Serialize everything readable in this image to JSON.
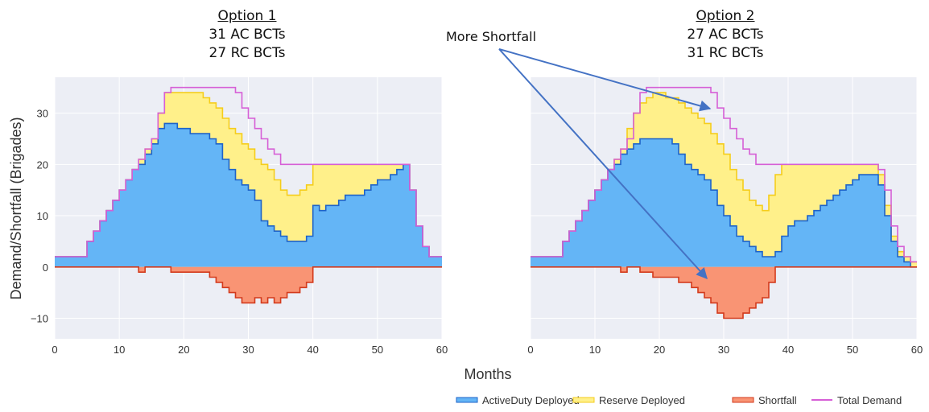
{
  "titles": {
    "left": {
      "line1": "Option 1",
      "line2": "31 AC BCTs",
      "line3": "27 RC BCTs"
    },
    "right": {
      "line1": "Option 2",
      "line2": "27 AC BCTs",
      "line3": "31 RC BCTs"
    }
  },
  "annotation": "More Shortfall",
  "colors": {
    "active": "#64b5f6",
    "active_line": "#1e63c8",
    "reserve": "#fff08a",
    "reserve_line": "#f5cd1c",
    "shortfall": "#f99474",
    "shortfall_line": "#d33a1c",
    "demand": "#d65fd6",
    "plot_bg": "#eceef5",
    "grid": "#ffffff",
    "arrow": "#4472c4"
  },
  "chart_data": [
    {
      "type": "area",
      "name": "Option 1",
      "xlabel": "Months",
      "ylabel": "Demand/Shortfall (Brigades)",
      "xlim": [
        0,
        60
      ],
      "ylim": [
        -14,
        37
      ],
      "xticks": [
        0,
        10,
        20,
        30,
        40,
        50,
        60
      ],
      "yticks": [
        -10,
        0,
        10,
        20,
        30
      ],
      "grid": true,
      "legend": "bottom-right",
      "series": [
        {
          "name": "ActiveDuty Deployed",
          "x": [
            0,
            4,
            5,
            6,
            7,
            8,
            9,
            10,
            11,
            12,
            13,
            14,
            15,
            16,
            17,
            18,
            19,
            20,
            21,
            22,
            23,
            24,
            25,
            26,
            27,
            28,
            29,
            30,
            31,
            32,
            33,
            34,
            35,
            36,
            37,
            38,
            39,
            40,
            41,
            42,
            43,
            44,
            45,
            46,
            47,
            48,
            49,
            50,
            51,
            52,
            53,
            54,
            55,
            56,
            57,
            58,
            59,
            60
          ],
          "values": [
            2,
            2,
            5,
            7,
            9,
            11,
            13,
            15,
            17,
            19,
            20,
            22,
            24,
            27,
            28,
            28,
            27,
            27,
            26,
            26,
            26,
            25,
            24,
            21,
            19,
            17,
            16,
            15,
            13,
            9,
            8,
            7,
            6,
            5,
            5,
            5,
            6,
            12,
            11,
            12,
            12,
            13,
            14,
            14,
            14,
            15,
            16,
            17,
            17,
            18,
            19,
            20,
            15,
            8,
            4,
            2,
            2,
            2
          ]
        },
        {
          "name": "Reserve Deployed",
          "x": [
            0,
            4,
            5,
            6,
            7,
            8,
            9,
            10,
            11,
            12,
            13,
            14,
            15,
            16,
            17,
            18,
            19,
            20,
            21,
            22,
            23,
            24,
            25,
            26,
            27,
            28,
            29,
            30,
            31,
            32,
            33,
            34,
            35,
            36,
            37,
            38,
            39,
            40,
            41,
            42,
            43,
            44,
            45,
            46,
            47,
            48,
            49,
            50,
            51,
            52,
            53,
            54,
            55,
            56,
            57,
            58,
            59,
            60
          ],
          "values": [
            2,
            2,
            5,
            7,
            9,
            11,
            13,
            15,
            17,
            19,
            21,
            23,
            25,
            30,
            34,
            34,
            34,
            34,
            34,
            34,
            33,
            32,
            31,
            29,
            27,
            26,
            24,
            23,
            21,
            20,
            19,
            17,
            15,
            14,
            14,
            15,
            16,
            20,
            20,
            20,
            20,
            20,
            20,
            20,
            20,
            20,
            20,
            20,
            20,
            20,
            20,
            20,
            15,
            8,
            4,
            2,
            2,
            2
          ]
        },
        {
          "name": "Shortfall",
          "x": [
            0,
            12,
            13,
            14,
            15,
            16,
            17,
            18,
            19,
            20,
            21,
            22,
            23,
            24,
            25,
            26,
            27,
            28,
            29,
            30,
            31,
            32,
            33,
            34,
            35,
            36,
            37,
            38,
            39,
            40,
            60
          ],
          "values": [
            0,
            0,
            -1,
            0,
            0,
            0,
            0,
            -1,
            -1,
            -1,
            -1,
            -1,
            -1,
            -2,
            -3,
            -4,
            -5,
            -6,
            -7,
            -7,
            -6,
            -7,
            -6,
            -7,
            -6,
            -5,
            -5,
            -4,
            -3,
            0,
            0
          ]
        },
        {
          "name": "Total Demand",
          "x": [
            0,
            4,
            5,
            6,
            7,
            8,
            9,
            10,
            11,
            12,
            13,
            14,
            15,
            16,
            17,
            18,
            19,
            20,
            21,
            22,
            23,
            24,
            25,
            26,
            27,
            28,
            29,
            30,
            31,
            32,
            33,
            34,
            35,
            36,
            37,
            38,
            39,
            40,
            41,
            42,
            43,
            44,
            45,
            46,
            47,
            48,
            49,
            50,
            51,
            52,
            53,
            54,
            55,
            56,
            57,
            58,
            59,
            60
          ],
          "values": [
            2,
            2,
            5,
            7,
            9,
            11,
            13,
            15,
            17,
            19,
            21,
            23,
            25,
            30,
            34,
            35,
            35,
            35,
            35,
            35,
            35,
            35,
            35,
            35,
            35,
            34,
            31,
            29,
            27,
            25,
            23,
            22,
            20,
            20,
            20,
            20,
            20,
            20,
            20,
            20,
            20,
            20,
            20,
            20,
            20,
            20,
            20,
            20,
            20,
            20,
            20,
            20,
            15,
            8,
            4,
            2,
            2,
            2
          ]
        }
      ]
    },
    {
      "type": "area",
      "name": "Option 2",
      "xlabel": "Months",
      "ylabel": "Demand/Shortfall (Brigades)",
      "xlim": [
        0,
        60
      ],
      "ylim": [
        -14,
        37
      ],
      "xticks": [
        0,
        10,
        20,
        30,
        40,
        50,
        60
      ],
      "yticks": [
        -10,
        0,
        10,
        20,
        30
      ],
      "grid": true,
      "legend": "bottom-right",
      "series": [
        {
          "name": "ActiveDuty Deployed",
          "x": [
            0,
            4,
            5,
            6,
            7,
            8,
            9,
            10,
            11,
            12,
            13,
            14,
            15,
            16,
            17,
            18,
            19,
            20,
            21,
            22,
            23,
            24,
            25,
            26,
            27,
            28,
            29,
            30,
            31,
            32,
            33,
            34,
            35,
            36,
            37,
            38,
            39,
            40,
            41,
            42,
            43,
            44,
            45,
            46,
            47,
            48,
            49,
            50,
            51,
            52,
            53,
            54,
            55,
            56,
            57,
            58,
            59,
            60
          ],
          "values": [
            2,
            2,
            5,
            7,
            9,
            11,
            13,
            15,
            17,
            19,
            20,
            22,
            23,
            24,
            25,
            25,
            25,
            25,
            25,
            24,
            22,
            20,
            19,
            18,
            17,
            15,
            12,
            10,
            8,
            6,
            5,
            4,
            3,
            2,
            2,
            3,
            6,
            8,
            9,
            9,
            10,
            11,
            12,
            13,
            14,
            15,
            16,
            17,
            18,
            18,
            18,
            16,
            10,
            5,
            2,
            1,
            0,
            0
          ]
        },
        {
          "name": "Reserve Deployed",
          "x": [
            0,
            4,
            5,
            6,
            7,
            8,
            9,
            10,
            11,
            12,
            13,
            14,
            15,
            16,
            17,
            18,
            19,
            20,
            21,
            22,
            23,
            24,
            25,
            26,
            27,
            28,
            29,
            30,
            31,
            32,
            33,
            34,
            35,
            36,
            37,
            38,
            39,
            40,
            41,
            42,
            43,
            44,
            45,
            46,
            47,
            48,
            49,
            50,
            51,
            52,
            53,
            54,
            55,
            56,
            57,
            58,
            59,
            60
          ],
          "values": [
            2,
            2,
            5,
            7,
            9,
            11,
            13,
            15,
            17,
            19,
            21,
            23,
            27,
            30,
            32,
            33,
            34,
            34,
            33,
            33,
            32,
            31,
            30,
            29,
            28,
            26,
            24,
            22,
            19,
            17,
            15,
            13,
            12,
            11,
            14,
            18,
            20,
            20,
            20,
            20,
            20,
            20,
            20,
            20,
            20,
            20,
            20,
            20,
            20,
            20,
            20,
            18,
            12,
            6,
            3,
            2,
            1,
            1
          ]
        },
        {
          "name": "Shortfall",
          "x": [
            0,
            13,
            14,
            15,
            16,
            17,
            18,
            19,
            20,
            21,
            22,
            23,
            24,
            25,
            26,
            27,
            28,
            29,
            30,
            31,
            32,
            33,
            34,
            35,
            36,
            37,
            38,
            60
          ],
          "values": [
            0,
            0,
            -1,
            0,
            0,
            -1,
            -1,
            -2,
            -2,
            -2,
            -2,
            -3,
            -3,
            -4,
            -5,
            -6,
            -7,
            -9,
            -10,
            -10,
            -10,
            -9,
            -8,
            -7,
            -6,
            -3,
            0,
            0
          ]
        },
        {
          "name": "Total Demand",
          "x": [
            0,
            4,
            5,
            6,
            7,
            8,
            9,
            10,
            11,
            12,
            13,
            14,
            15,
            16,
            17,
            18,
            19,
            20,
            21,
            22,
            23,
            24,
            25,
            26,
            27,
            28,
            29,
            30,
            31,
            32,
            33,
            34,
            35,
            36,
            37,
            38,
            39,
            40,
            41,
            42,
            43,
            44,
            45,
            46,
            47,
            48,
            49,
            50,
            51,
            52,
            53,
            54,
            55,
            56,
            57,
            58,
            59,
            60
          ],
          "values": [
            2,
            2,
            5,
            7,
            9,
            11,
            13,
            15,
            17,
            19,
            21,
            23,
            25,
            30,
            34,
            35,
            35,
            35,
            35,
            35,
            35,
            35,
            35,
            35,
            35,
            34,
            31,
            29,
            27,
            25,
            23,
            22,
            20,
            20,
            20,
            20,
            20,
            20,
            20,
            20,
            20,
            20,
            20,
            20,
            20,
            20,
            20,
            20,
            20,
            20,
            20,
            19,
            15,
            8,
            4,
            2,
            1,
            1
          ]
        }
      ]
    }
  ],
  "legend": [
    {
      "label": "ActiveDuty Deployed",
      "kind": "area",
      "fill": "#64b5f6",
      "stroke": "#1e63c8"
    },
    {
      "label": "Reserve Deployed",
      "kind": "area",
      "fill": "#fff08a",
      "stroke": "#f5cd1c"
    },
    {
      "label": "Shortfall",
      "kind": "area",
      "fill": "#f99474",
      "stroke": "#d33a1c"
    },
    {
      "label": "Total Demand",
      "kind": "line",
      "stroke": "#d65fd6"
    }
  ]
}
